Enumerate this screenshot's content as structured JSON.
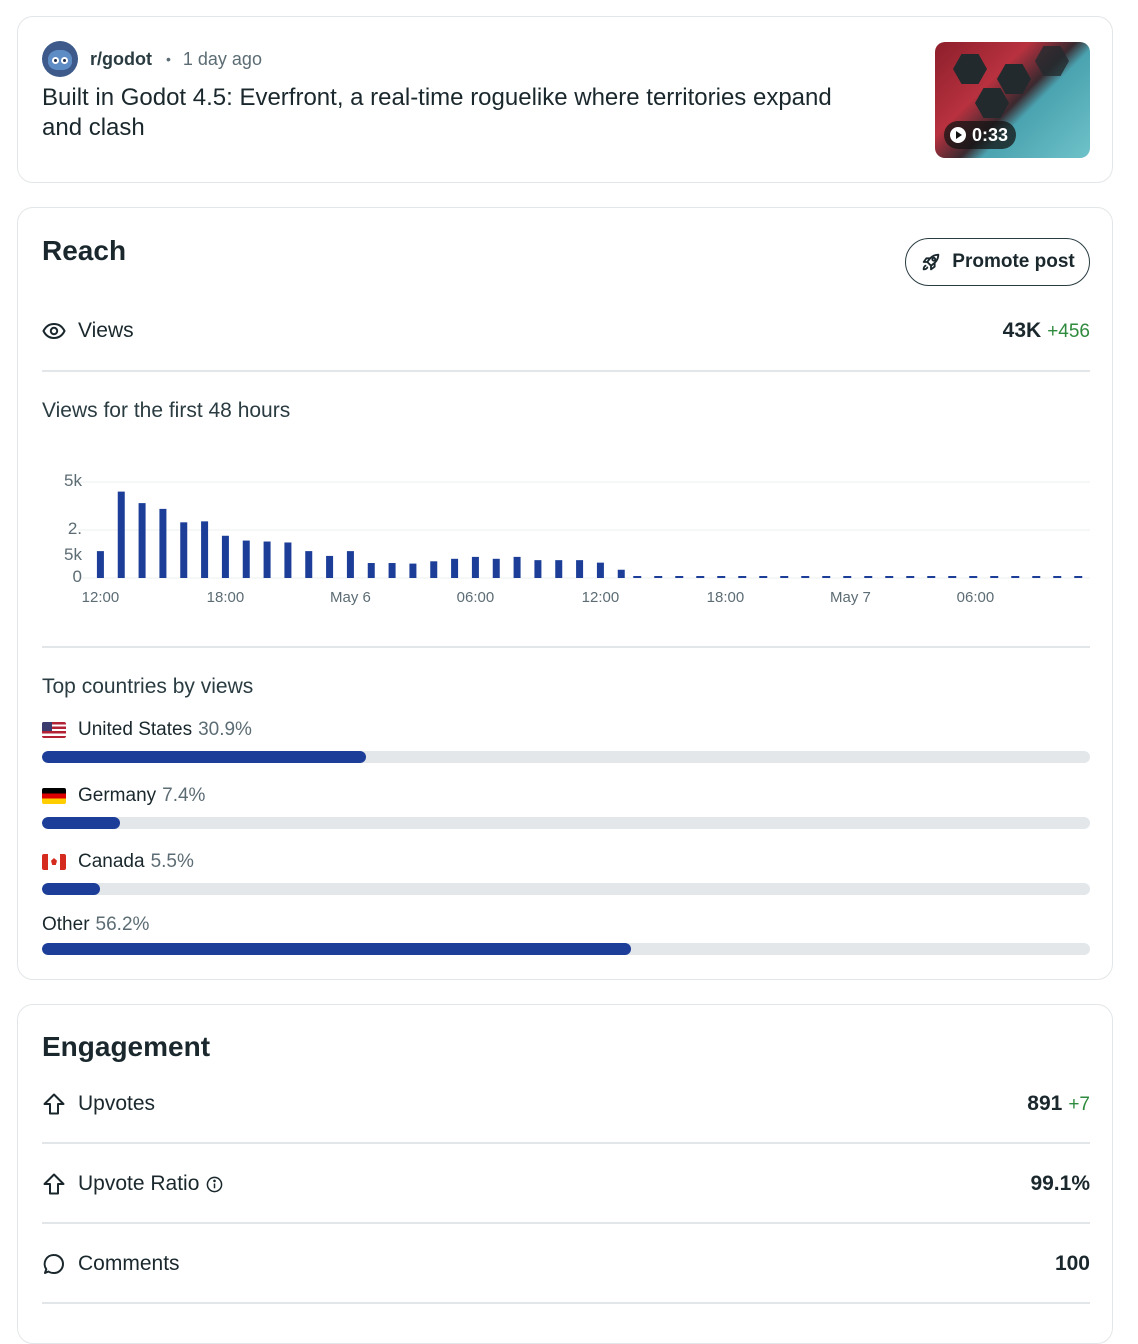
{
  "post": {
    "subreddit": "r/godot",
    "age": "1 day ago",
    "separator": "•",
    "title": "Built in Godot 4.5: Everfront, a real-time roguelike where territories expand and clash",
    "video_duration": "0:33"
  },
  "reach": {
    "title": "Reach",
    "promote_label": "Promote post",
    "views_label": "Views",
    "views_value": "43K",
    "views_delta": "+456",
    "chart_title": "Views for the first 48 hours"
  },
  "chart_data": {
    "type": "bar",
    "title": "Views for the first 48 hours",
    "y_tick_labels": [
      "5k",
      "2.\n5k",
      "0"
    ],
    "y_ticks": [
      5000,
      2500,
      0
    ],
    "ylim": [
      0,
      5000
    ],
    "x_tick_labels": [
      "12:00",
      "18:00",
      "May 6",
      "06:00",
      "12:00",
      "18:00",
      "May 7",
      "06:00"
    ],
    "x_tick_hours": [
      0,
      6,
      12,
      18,
      24,
      30,
      36,
      42
    ],
    "x_hours_total": 48,
    "bar_hours": [
      0,
      1,
      2,
      3,
      4,
      5,
      6,
      7,
      8,
      9,
      10,
      11,
      12,
      13,
      14,
      15,
      16,
      17,
      18,
      19,
      20,
      21,
      22,
      23,
      24,
      25
    ],
    "values": [
      1400,
      4500,
      3900,
      3600,
      2900,
      2950,
      2200,
      1950,
      1900,
      1850,
      1400,
      1150,
      1400,
      780,
      780,
      750,
      870,
      1000,
      1100,
      1000,
      1100,
      930,
      930,
      930,
      800,
      430
    ],
    "future_dashed": true,
    "grid": true
  },
  "countries": {
    "title": "Top countries by views",
    "items": [
      {
        "name": "United States",
        "pct_label": "30.9%",
        "fraction": 0.309,
        "flag": "us-flag"
      },
      {
        "name": "Germany",
        "pct_label": "7.4%",
        "fraction": 0.074,
        "flag": "de-flag"
      },
      {
        "name": "Canada",
        "pct_label": "5.5%",
        "fraction": 0.055,
        "flag": "ca-flag"
      },
      {
        "name": "Other",
        "pct_label": "56.2%",
        "fraction": 0.562,
        "flag": ""
      }
    ]
  },
  "engagement": {
    "title": "Engagement",
    "upvotes_label": "Upvotes",
    "upvotes_value": "891",
    "upvotes_delta": "+7",
    "ratio_label": "Upvote Ratio",
    "ratio_value": "99.1%",
    "comments_label": "Comments",
    "comments_value": "100"
  },
  "colors": {
    "accent_bar": "#1c3e98",
    "delta_positive": "#2e8a3d",
    "track": "#e3e7ea"
  }
}
